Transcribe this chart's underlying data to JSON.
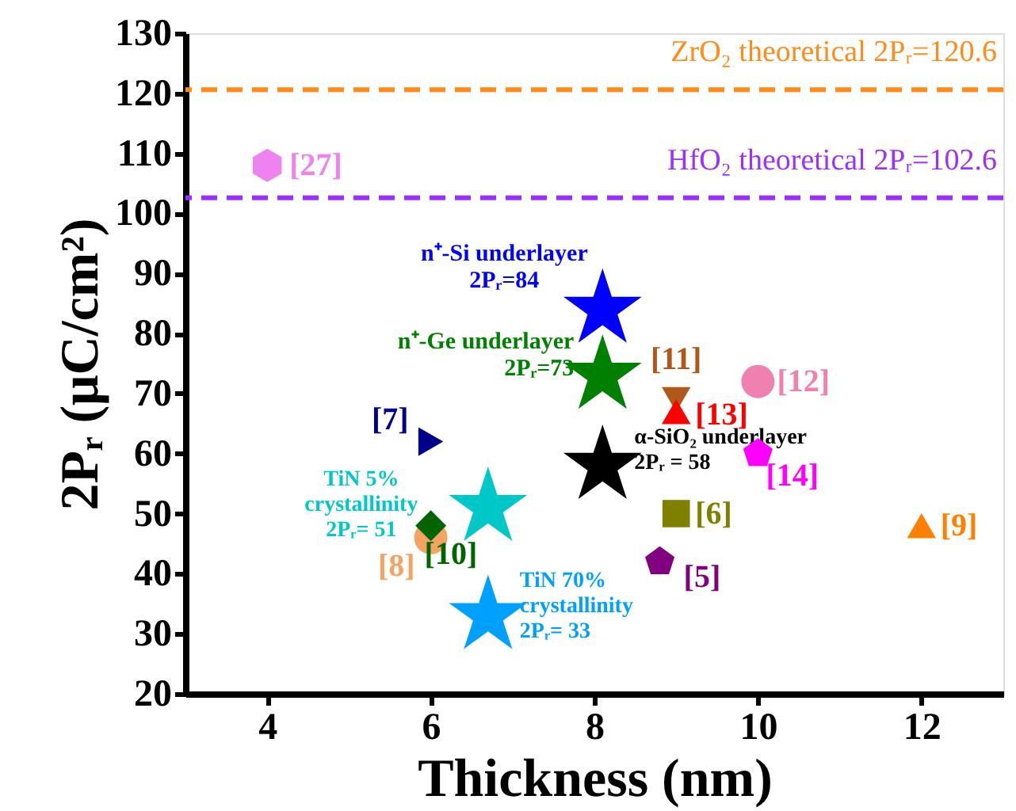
{
  "chart_data": {
    "type": "scatter",
    "xlabel": "Thickness (nm)",
    "ylabel": "2Pᵣ (μC/cm²)",
    "xlim": [
      3,
      13
    ],
    "xticks": [
      4,
      6,
      8,
      10,
      12
    ],
    "ylim": [
      20,
      130
    ],
    "yticks": [
      20,
      30,
      40,
      50,
      60,
      70,
      80,
      90,
      100,
      110,
      120,
      130
    ],
    "grid": false,
    "ref_lines": [
      {
        "axis": "y",
        "value": 120.6,
        "label": "ZrO₂ theoretical 2Pᵣ=120.6",
        "color": "#ff8c1a",
        "line_style": "dashed"
      },
      {
        "axis": "y",
        "value": 102.6,
        "label": "HfO₂ theoretical 2Pᵣ=102.6",
        "color": "#9b30ff",
        "line_style": "dashed"
      }
    ],
    "series": [
      {
        "name": "[27]",
        "color": "#ee82ee",
        "x": [
          4
        ],
        "values": [
          108
        ]
      },
      {
        "name": "n⁺-Si underlayer\n2Pᵣ=84",
        "color": "#0000ff",
        "marker": "star",
        "x": [
          8.1
        ],
        "values": [
          84
        ]
      },
      {
        "name": "n⁺-Ge underlayer\n2Pᵣ=73",
        "color": "#008000",
        "marker": "star",
        "x": [
          8.1
        ],
        "values": [
          73
        ]
      },
      {
        "name": "α-SiO₂ underlayer\n2Pᵣ = 58",
        "color": "#000000",
        "marker": "star",
        "x": [
          8.1
        ],
        "values": [
          58
        ]
      },
      {
        "name": "TiN 5%\ncrystallinity\n2Pᵣ= 51",
        "color": "#00c8c8",
        "marker": "star",
        "x": [
          6.7
        ],
        "values": [
          51
        ]
      },
      {
        "name": "TiN 70%\ncrystallinity\n2Pᵣ= 33",
        "color": "#00a0ff",
        "marker": "star",
        "x": [
          6.7
        ],
        "values": [
          33
        ]
      },
      {
        "name": "[7]",
        "color": "#00008b",
        "marker": "triangle-right",
        "x": [
          6
        ],
        "values": [
          62
        ]
      },
      {
        "name": "[8]",
        "color": "#f4a460",
        "marker": "circle",
        "x": [
          6
        ],
        "values": [
          46
        ]
      },
      {
        "name": "[10]",
        "color": "#006400",
        "marker": "diamond",
        "x": [
          6
        ],
        "values": [
          48
        ]
      },
      {
        "name": "[11]",
        "color": "#b0581a",
        "marker": "triangle-down",
        "x": [
          9
        ],
        "values": [
          69
        ]
      },
      {
        "name": "[13]",
        "color": "#ff0000",
        "marker": "triangle",
        "x": [
          9
        ],
        "values": [
          67
        ]
      },
      {
        "name": "[12]",
        "color": "#f080b0",
        "marker": "circle",
        "x": [
          10
        ],
        "values": [
          72
        ]
      },
      {
        "name": "[14]",
        "color": "#ff00ff",
        "x": [
          10
        ],
        "values": [
          60
        ]
      },
      {
        "name": "[6]",
        "color": "#808000",
        "marker": "square",
        "x": [
          9
        ],
        "values": [
          50
        ]
      },
      {
        "name": "[5]",
        "color": "#800080",
        "x": [
          8.8
        ],
        "values": [
          42
        ]
      },
      {
        "name": "[9]",
        "color": "#ff8000",
        "marker": "triangle",
        "x": [
          12
        ],
        "values": [
          48
        ]
      }
    ]
  }
}
